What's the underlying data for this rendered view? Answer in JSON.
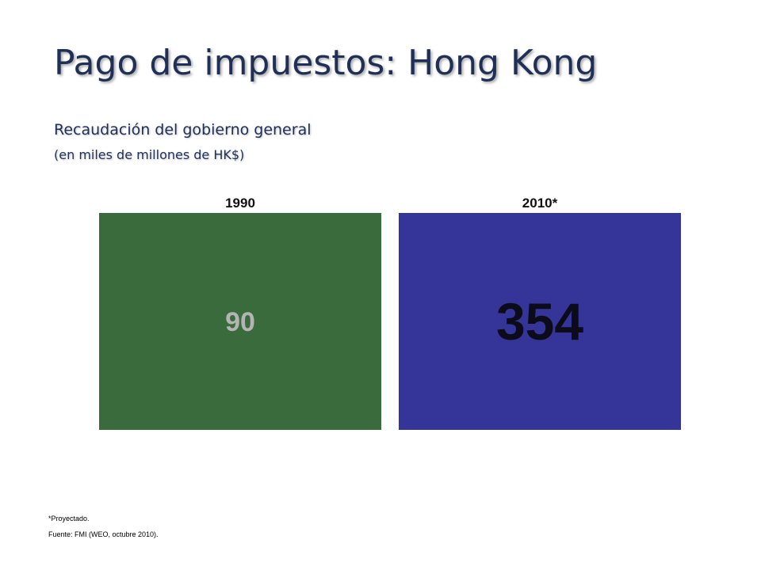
{
  "slide": {
    "title": "Pago de impuestos: Hong Kong",
    "subtitle": "Recaudación del gobierno general",
    "unit_note": "(en miles de millones de HK$)",
    "footnote": "*Proyectado.",
    "source": "Fuente: FMI (WEO, octubre 2010)."
  },
  "chart_data": {
    "type": "bar",
    "title": "Recaudación del gobierno general",
    "ylabel": "(en miles de millones de HK$)",
    "categories": [
      "1990",
      "2010*"
    ],
    "values": [
      90,
      354
    ],
    "data_labels": [
      "90",
      "354"
    ],
    "colors": [
      "#3a6b3c",
      "#353599"
    ],
    "label_colors": [
      "#b4b4b4",
      "#0b0b1a"
    ],
    "label_sizes": [
      "small",
      "large"
    ],
    "grid": false,
    "legend": "none"
  }
}
